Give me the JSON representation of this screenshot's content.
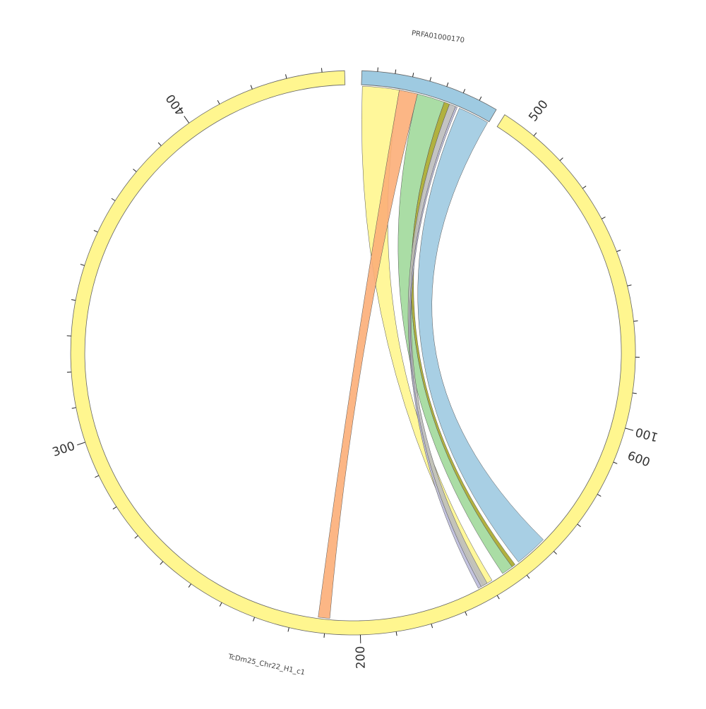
{
  "diagram": {
    "type": "circos",
    "contigs": [
      {
        "id": "prfa",
        "label": "PRFA01000170",
        "color": "#9ecae1"
      },
      {
        "id": "chr22",
        "label": "TcDm25_Chr22_H1_c1",
        "color": "#fff68f"
      }
    ],
    "tick_labels": [
      "100",
      "200",
      "300",
      "400",
      "500",
      "600"
    ],
    "links": [
      {
        "name": "yellow-link",
        "color": "#fff68f"
      },
      {
        "name": "orange-link",
        "color": "#fcae78"
      },
      {
        "name": "green-link",
        "color": "#a1d99b"
      },
      {
        "name": "olive-link",
        "color": "#a8a82a"
      },
      {
        "name": "grey-link",
        "color": "#bdbdbd"
      },
      {
        "name": "purple-link",
        "color": "#bcbddc"
      },
      {
        "name": "blue-link",
        "color": "#9ecae1"
      }
    ]
  }
}
